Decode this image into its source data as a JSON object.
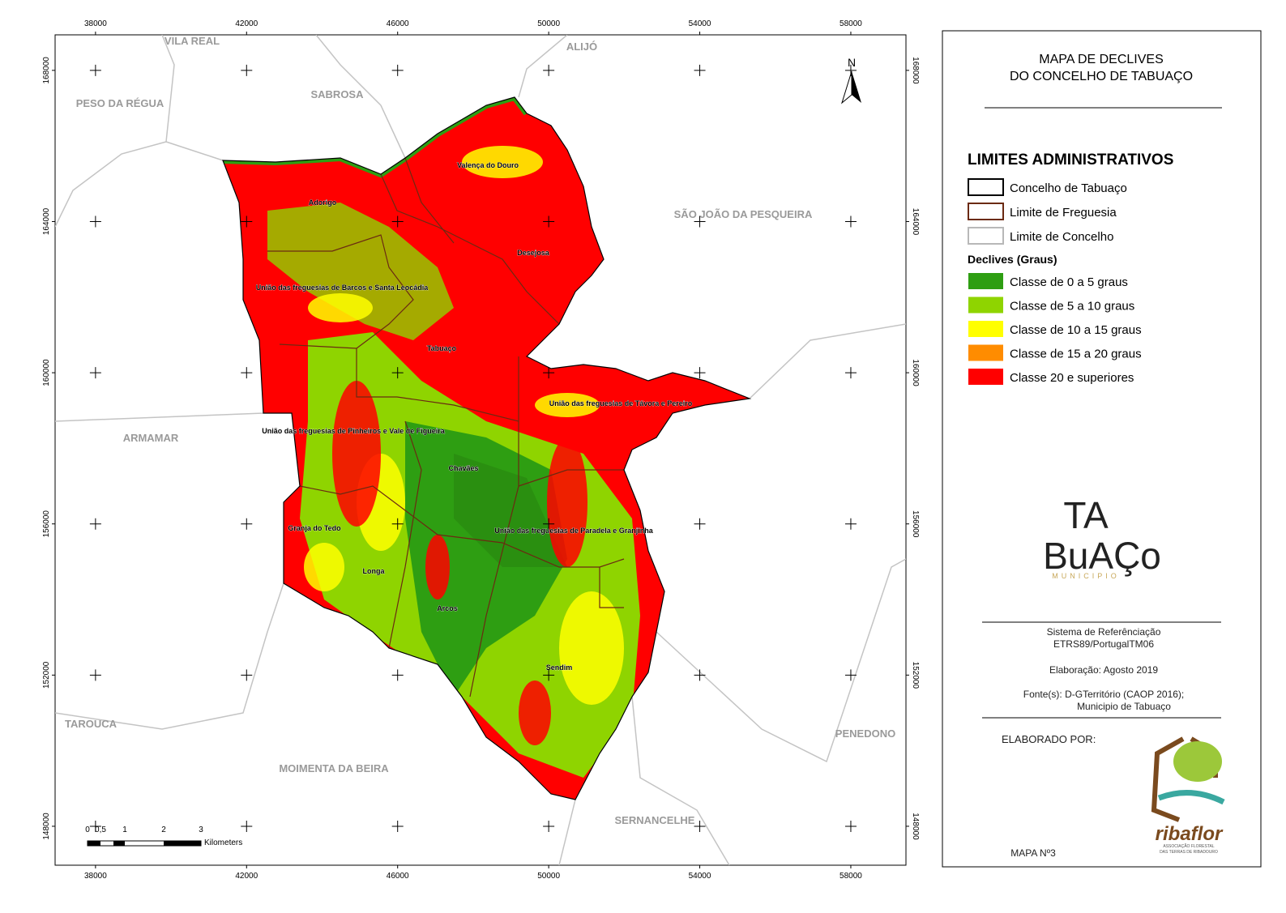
{
  "map": {
    "grid": {
      "xlim": [
        36930,
        59460
      ],
      "ylim": [
        146970,
        168940
      ],
      "x_ticks": [
        38000,
        42000,
        46000,
        50000,
        54000,
        58000
      ],
      "y_ticks": [
        148000,
        152000,
        156000,
        160000,
        164000,
        168000
      ]
    },
    "neighbors": [
      "VILA REAL",
      "ALIJÓ",
      "PESO DA RÉGUA",
      "SABROSA",
      "SÃO JOÃO DA PESQUEIRA",
      "ARMAMAR",
      "TAROUCA",
      "MOIMENTA DA BEIRA",
      "PENEDONO",
      "SERNANCELHE"
    ],
    "parishes": [
      "Valença do Douro",
      "Adorigo",
      "Desejosa",
      "União das freguesias de Barcos e Santa Leocádia",
      "Tabuaço",
      "União das freguesias de Távora e Pereiro",
      "União das freguesias de Pinheiros e Vale de Figueira",
      "Chavães",
      "União das freguesias de Paradela e Granjinha",
      "Granja do Tedo",
      "Longa",
      "Arcos",
      "Sendim"
    ],
    "north": "N",
    "scale_bar": {
      "labels": [
        "0",
        "0,5",
        "1",
        "2",
        "3"
      ],
      "unit": "Kilometers"
    }
  },
  "panel": {
    "title": [
      "MAPA DE DECLIVES",
      "DO CONCELHO DE TABUAÇO"
    ],
    "admin_title": "LIMITES ADMINISTRATIVOS",
    "admin_items": [
      {
        "label": "Concelho de Tabuaço",
        "color": "#000000"
      },
      {
        "label": "Limite de Freguesia",
        "color": "#6b2a12"
      },
      {
        "label": "Limite de Concelho",
        "color": "#b8b8b8"
      }
    ],
    "slope_title": "Declives (Graus)",
    "slope_items": [
      {
        "label": "Classe de 0 a 5 graus",
        "color": "#2e9e12"
      },
      {
        "label": "Classe de 5 a 10 graus",
        "color": "#8fd400"
      },
      {
        "label": "Classe de 10 a 15 graus",
        "color": "#ffff00"
      },
      {
        "label": "Classe de 15 a 20 graus",
        "color": "#ff8c00"
      },
      {
        "label": "Classe 20 e superiores",
        "color": "#ff0000"
      }
    ],
    "logo": {
      "line1": "TA",
      "line2": "BuAÇo",
      "sub": "MUNICIPIO"
    },
    "info": [
      "Sistema de Referênciação",
      "ETRS89/PortugalTM06",
      "Elaboração: Agosto 2019",
      "Fonte(s): D-GTerritório (CAOP 2016);",
      "Municipio de Tabuaço"
    ],
    "made_by": "ELABORADO POR:",
    "org": {
      "name": "ribaflor",
      "sub1": "ASSOCIAÇÃO FLORESTAL",
      "sub2": "DAS TERRAS DE RIBADOURO"
    },
    "map_no": "MAPA Nº3"
  }
}
